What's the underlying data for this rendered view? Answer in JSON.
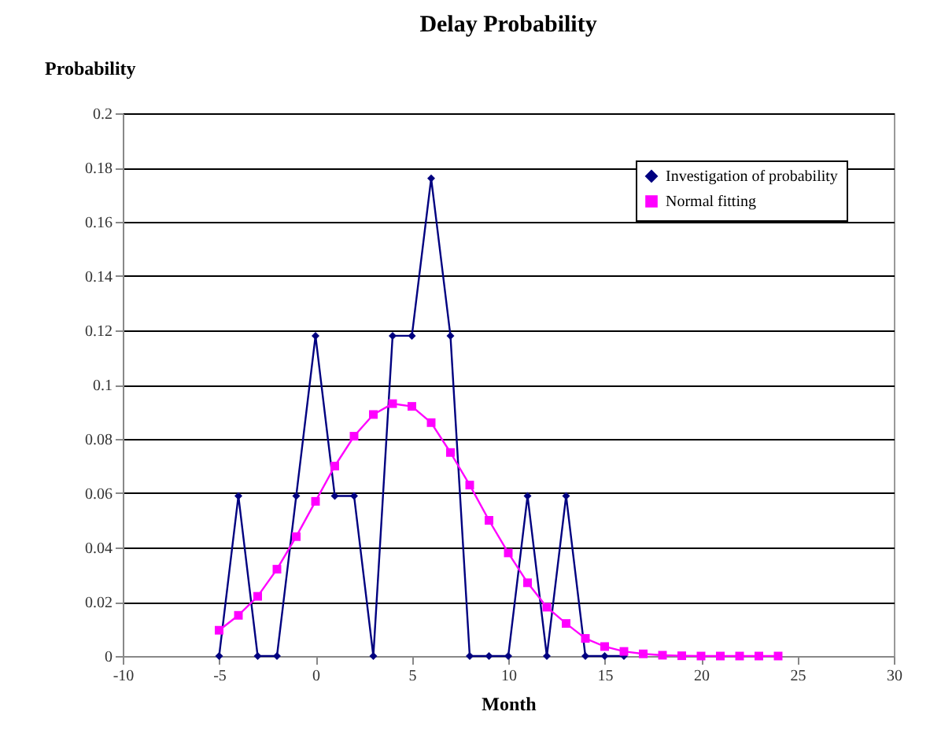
{
  "chart_data": {
    "type": "line",
    "title": "Delay Probability",
    "xlabel": "Month",
    "ylabel": "Probability",
    "xlim": [
      -10,
      30
    ],
    "xticks": [
      -10,
      -5,
      0,
      5,
      10,
      15,
      20,
      25,
      30
    ],
    "ylim": [
      0,
      0.2
    ],
    "yticks": [
      0,
      0.02,
      0.04,
      0.06,
      0.08,
      0.1,
      0.12,
      0.14,
      0.16,
      0.18,
      0.2
    ],
    "grid": "y",
    "legend": "top right",
    "series": [
      {
        "name": "Investigation of probability",
        "color": "#000080",
        "marker": "diamond",
        "x": [
          -5,
          -4,
          -3,
          -2,
          -1,
          0,
          1,
          2,
          3,
          4,
          5,
          6,
          7,
          8,
          9,
          10,
          11,
          12,
          13,
          14,
          15,
          16
        ],
        "values": [
          0,
          0.059,
          0,
          0,
          0.059,
          0.118,
          0.059,
          0.059,
          0,
          0.118,
          0.118,
          0.176,
          0.118,
          0,
          0,
          0,
          0.059,
          0,
          0.059,
          0,
          0,
          0
        ]
      },
      {
        "name": "Normal fitting",
        "color": "#ff00ff",
        "marker": "square",
        "x": [
          -5,
          -4,
          -3,
          -2,
          -1,
          0,
          1,
          2,
          3,
          4,
          5,
          6,
          7,
          8,
          9,
          10,
          11,
          12,
          13,
          14,
          15,
          16,
          17,
          18,
          19,
          20,
          21,
          22,
          23,
          24
        ],
        "values": [
          0.0095,
          0.015,
          0.022,
          0.032,
          0.044,
          0.057,
          0.07,
          0.081,
          0.089,
          0.093,
          0.092,
          0.086,
          0.075,
          0.063,
          0.05,
          0.038,
          0.027,
          0.018,
          0.012,
          0.0065,
          0.0035,
          0.0017,
          0.0008,
          0.0003,
          0.0001,
          0,
          0,
          0,
          0,
          0
        ]
      }
    ]
  }
}
